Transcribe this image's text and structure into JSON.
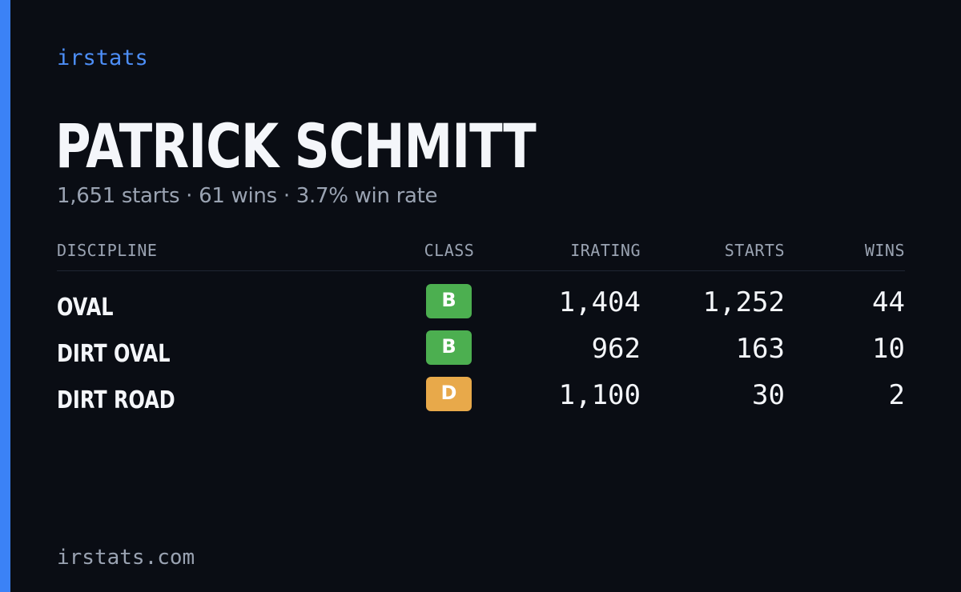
{
  "brand": "irstats",
  "player": {
    "name": "PATRICK SCHMITT",
    "summary": "1,651 starts · 61 wins · 3.7% win rate"
  },
  "table": {
    "headers": {
      "discipline": "DISCIPLINE",
      "class": "CLASS",
      "irating": "IRATING",
      "starts": "STARTS",
      "wins": "WINS"
    },
    "rows": [
      {
        "discipline": "OVAL",
        "class": "B",
        "class_color": "#4caf50",
        "irating": "1,404",
        "starts": "1,252",
        "wins": "44"
      },
      {
        "discipline": "DIRT OVAL",
        "class": "B",
        "class_color": "#4caf50",
        "irating": "962",
        "starts": "163",
        "wins": "10"
      },
      {
        "discipline": "DIRT ROAD",
        "class": "D",
        "class_color": "#e8a94a",
        "irating": "1,100",
        "starts": "30",
        "wins": "2"
      }
    ]
  },
  "footer": {
    "domain": "irstats.com"
  },
  "colors": {
    "background": "#0a0d14",
    "accent": "#3b82f6",
    "brand_text": "#4d8ef7",
    "muted_text": "#9aa3b2",
    "class_b": "#4caf50",
    "class_d": "#e8a94a"
  }
}
